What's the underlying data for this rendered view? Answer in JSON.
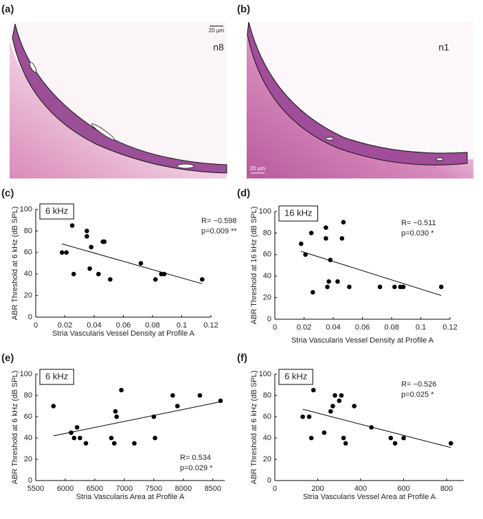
{
  "images": [
    {
      "panel_label": "(a)",
      "scale_bar": "20 µm",
      "label": "n8"
    },
    {
      "panel_label": "(b)",
      "scale_bar": "20 µm",
      "label": "n1"
    }
  ],
  "chart_data": [
    {
      "type": "scatter",
      "panel_label": "(c)",
      "box_label": "6 kHz",
      "annotations": [
        "R= −0.598",
        "p=0.009 **"
      ],
      "xlabel": "Stria Vascularis Vessel Density at Profile A",
      "ylabel": "ABR Threshold at 6 kHz (dB SPL)",
      "color": "#000000",
      "x": [
        0.018,
        0.021,
        0.025,
        0.026,
        0.035,
        0.035,
        0.037,
        0.038,
        0.043,
        0.046,
        0.047,
        0.051,
        0.072,
        0.082,
        0.086,
        0.088,
        0.114
      ],
      "values": [
        60,
        60,
        85,
        40,
        80,
        75,
        45,
        65,
        40,
        70,
        70,
        35,
        50,
        35,
        40,
        40,
        35
      ],
      "fit_line": {
        "x": [
          0.018,
          0.114
        ],
        "values": [
          68,
          31
        ]
      },
      "xlim": [
        0,
        0.12
      ],
      "xticks": [
        0,
        0.02,
        0.04,
        0.06,
        0.08,
        0.1,
        0.12
      ],
      "ylim": [
        0,
        100
      ],
      "yticks": [
        0,
        20,
        40,
        60,
        80,
        100
      ]
    },
    {
      "type": "scatter",
      "panel_label": "(d)",
      "box_label": "16 kHz",
      "annotations": [
        "R= −0.511",
        "p=0.030 *"
      ],
      "xlabel": "Stria Vascularis Vessel Density at Profile A",
      "ylabel": "ABR Threshold at 16 kHz (dB SPL)",
      "color": "#000000",
      "x": [
        0.018,
        0.021,
        0.025,
        0.026,
        0.035,
        0.035,
        0.036,
        0.037,
        0.038,
        0.043,
        0.046,
        0.047,
        0.051,
        0.072,
        0.082,
        0.086,
        0.088,
        0.114
      ],
      "values": [
        70,
        60,
        80,
        25,
        85,
        75,
        30,
        35,
        55,
        35,
        75,
        90,
        30,
        30,
        30,
        30,
        30,
        30
      ],
      "fit_line": {
        "x": [
          0.018,
          0.114
        ],
        "values": [
          63,
          22
        ]
      },
      "xlim": [
        0,
        0.12
      ],
      "xticks": [
        0,
        0.02,
        0.04,
        0.06,
        0.08,
        0.1,
        0.12
      ],
      "ylim": [
        0,
        100
      ],
      "yticks": [
        0,
        20,
        40,
        60,
        80,
        100
      ]
    },
    {
      "type": "scatter",
      "panel_label": "(e)",
      "box_label": "6 kHz",
      "annotations": [
        "R= 0.534",
        "p=0.029 *"
      ],
      "xlabel": "Stria Vascularis Area at Profile A",
      "ylabel": "ABR Threshold at 6 kHz (dB SPL)",
      "color": "#000000",
      "x": [
        5800,
        6100,
        6150,
        6200,
        6250,
        6350,
        6780,
        6830,
        6850,
        6870,
        6950,
        7170,
        7500,
        7520,
        7820,
        7900,
        8280,
        8630
      ],
      "values": [
        70,
        45,
        40,
        50,
        40,
        35,
        40,
        35,
        65,
        60,
        85,
        35,
        60,
        40,
        80,
        70,
        80,
        75
      ],
      "fit_line": {
        "x": [
          5800,
          8630
        ],
        "values": [
          42,
          74
        ]
      },
      "xlim": [
        5500,
        8700
      ],
      "xticks": [
        5500,
        6000,
        6500,
        7000,
        7500,
        8000,
        8500
      ],
      "ylim": [
        0,
        100
      ],
      "yticks": [
        0,
        20,
        40,
        60,
        80,
        100
      ]
    },
    {
      "type": "scatter",
      "panel_label": "(f)",
      "box_label": "6 kHz",
      "annotations": [
        "R= −0.526",
        "p=0.025 *"
      ],
      "xlabel": "Stria Vascularis Vessel Area at Profile A",
      "ylabel": "ABR Threshold at 6 kHz (dB SPL)",
      "color": "#000000",
      "x": [
        130,
        160,
        170,
        180,
        230,
        260,
        270,
        280,
        300,
        310,
        320,
        330,
        370,
        450,
        540,
        560,
        600,
        820
      ],
      "values": [
        60,
        60,
        40,
        85,
        45,
        65,
        70,
        80,
        75,
        80,
        40,
        35,
        70,
        50,
        40,
        35,
        40,
        35
      ],
      "fit_line": {
        "x": [
          130,
          820
        ],
        "values": [
          67,
          31
        ]
      },
      "xlim": [
        0,
        880
      ],
      "xticks": [
        0,
        200,
        400,
        600,
        800
      ],
      "ylim": [
        0,
        100
      ],
      "yticks": [
        0,
        20,
        40,
        60,
        80,
        100
      ]
    }
  ]
}
